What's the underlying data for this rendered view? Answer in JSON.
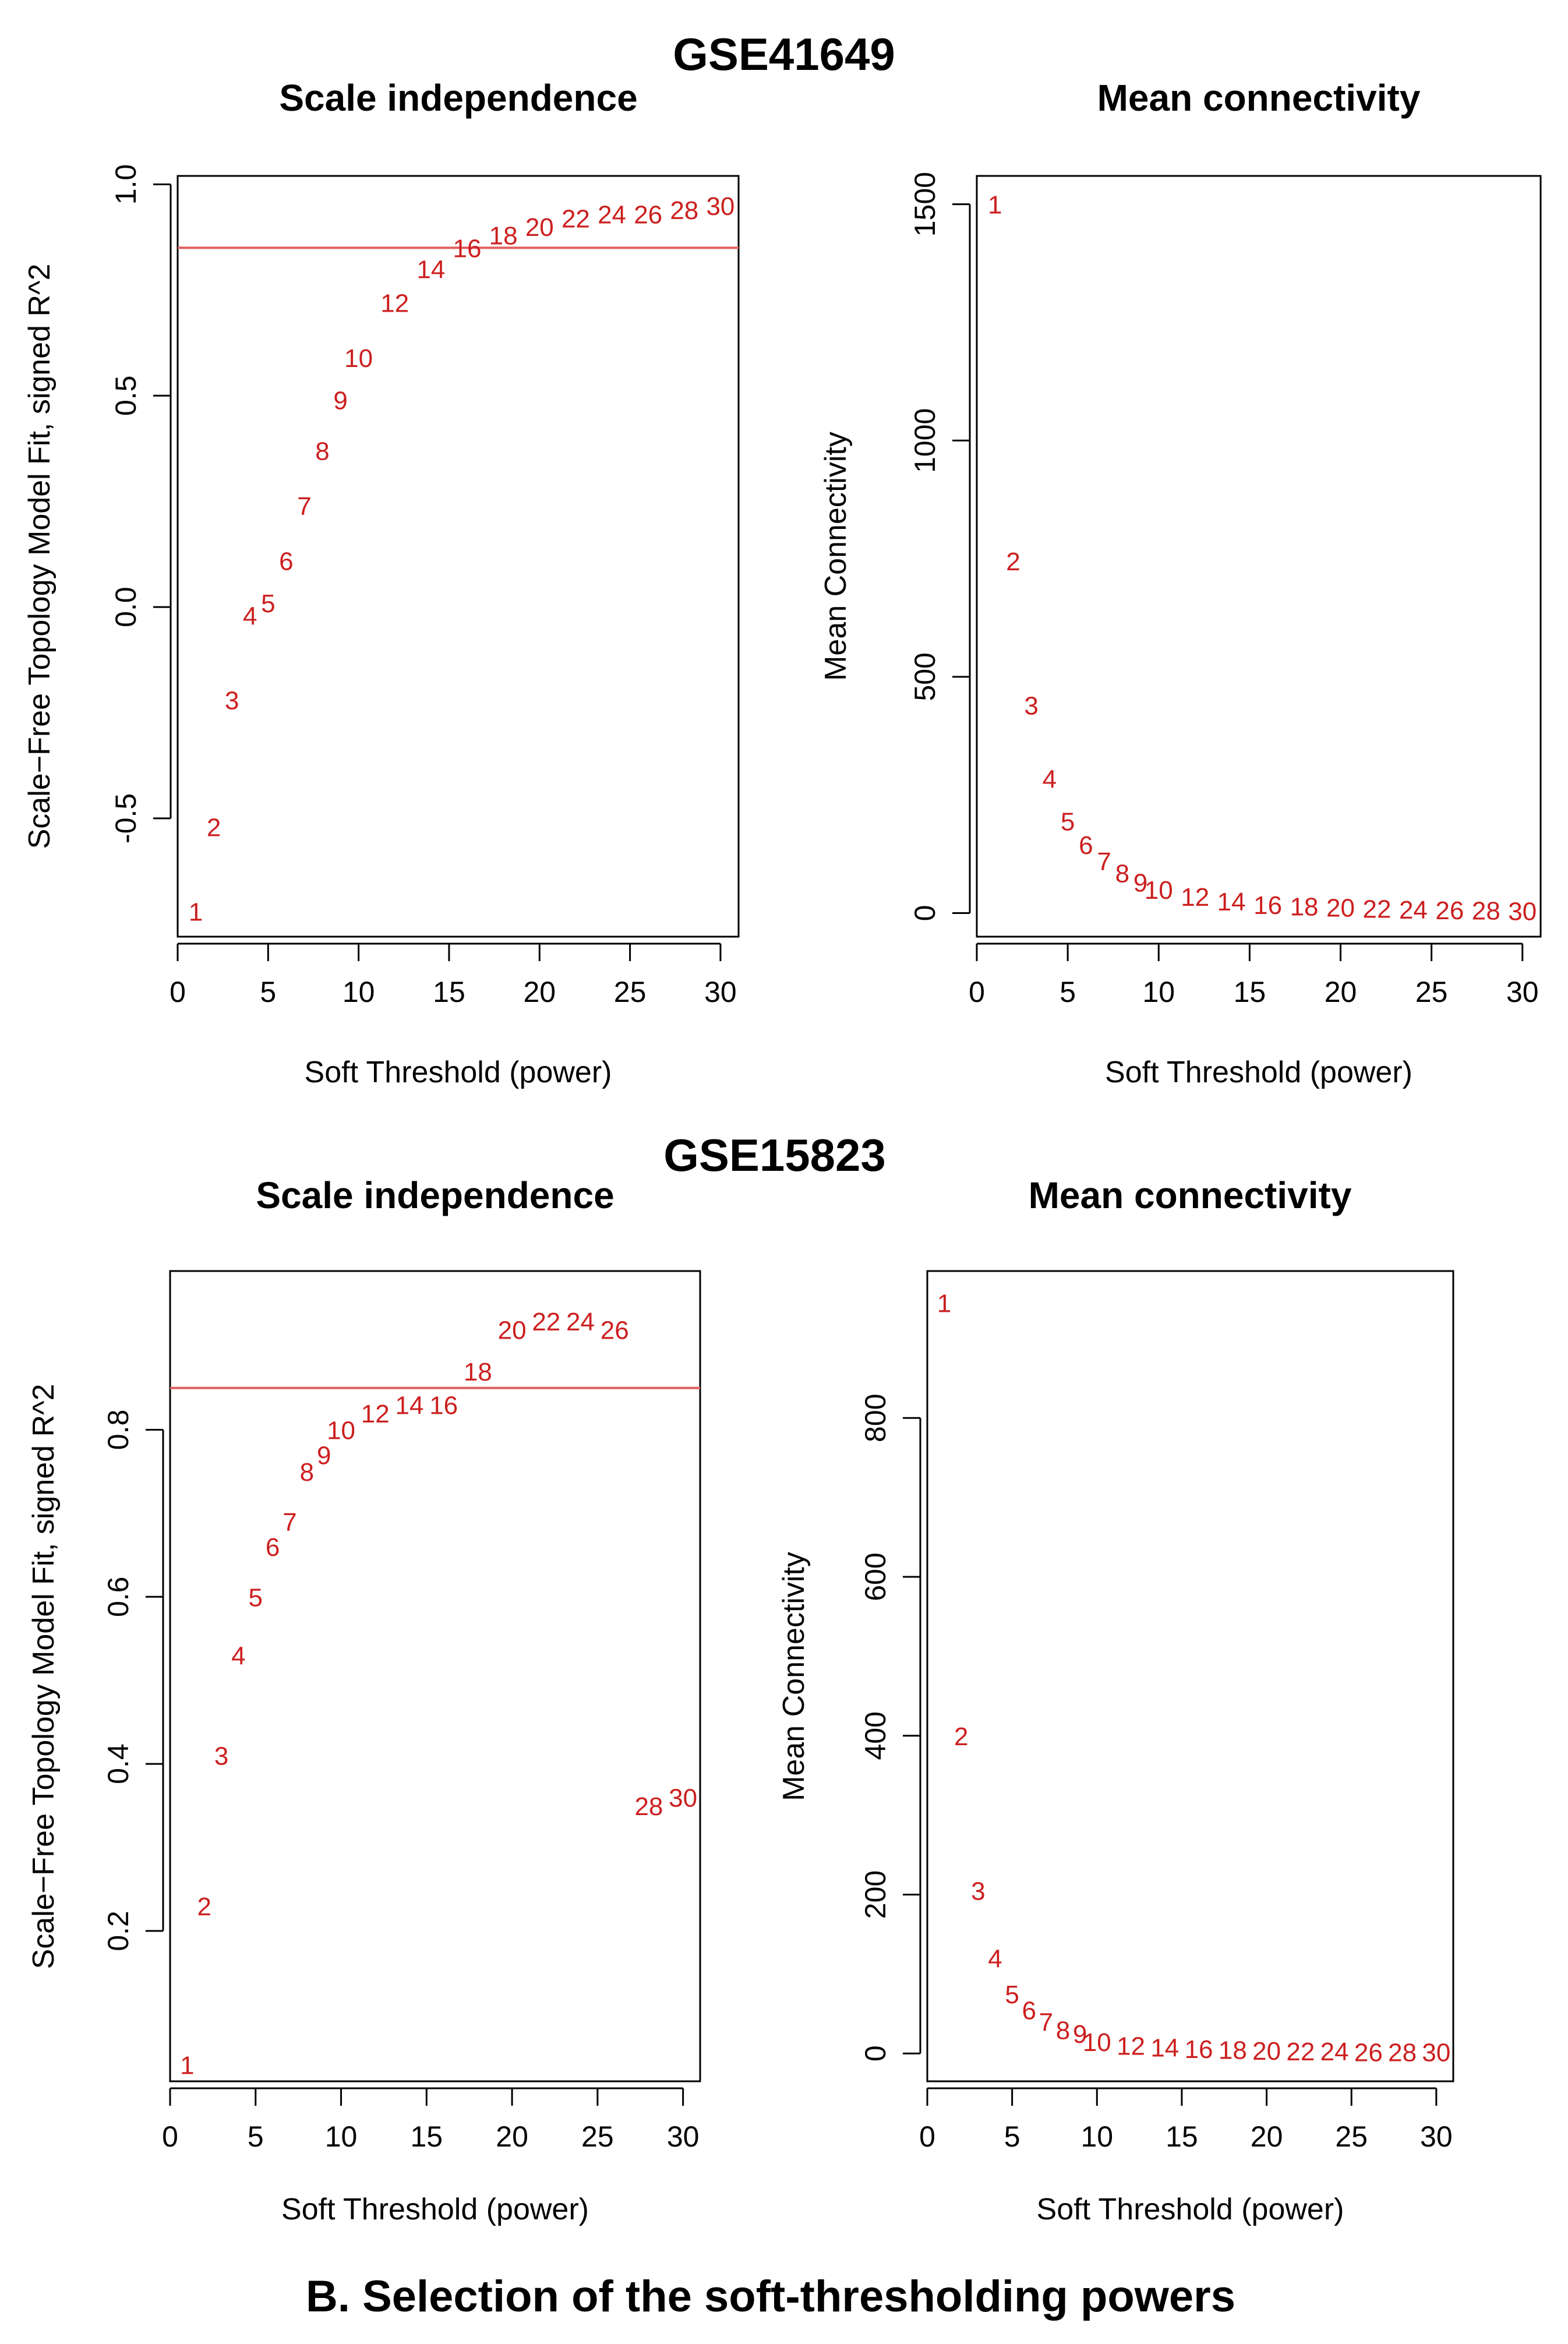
{
  "figure": {
    "caption": "B. Selection of the soft-thresholding powers",
    "groups": [
      {
        "title": "GSE41649"
      },
      {
        "title": "GSE15823"
      }
    ]
  },
  "colors": {
    "points": "#cc1f1f",
    "cutoff_line": "#e06060",
    "axis": "#000000"
  },
  "chart_data": [
    {
      "type": "scatter",
      "group": "GSE41649",
      "title": "Scale independence",
      "xlabel": "Soft Threshold (power)",
      "ylabel": "Scale−Free Topology Model Fit, signed R^2",
      "xlim": [
        0,
        31
      ],
      "ylim": [
        -0.78,
        1.02
      ],
      "xticks": [
        0,
        5,
        10,
        15,
        20,
        25,
        30
      ],
      "yticks": [
        -0.5,
        0.0,
        0.5,
        1.0
      ],
      "ytick_labels": [
        "-0.5",
        "0.0",
        "0.5",
        "1.0"
      ],
      "hline": 0.85,
      "labels": [
        "1",
        "2",
        "3",
        "4",
        "5",
        "6",
        "7",
        "8",
        "9",
        "10",
        "12",
        "14",
        "16",
        "18",
        "20",
        "22",
        "24",
        "26",
        "28",
        "30"
      ],
      "x": [
        1,
        2,
        3,
        4,
        5,
        6,
        7,
        8,
        9,
        10,
        12,
        14,
        16,
        18,
        20,
        22,
        24,
        26,
        28,
        30
      ],
      "y": [
        -0.72,
        -0.52,
        -0.22,
        -0.02,
        0.01,
        0.11,
        0.24,
        0.37,
        0.49,
        0.59,
        0.72,
        0.8,
        0.85,
        0.88,
        0.9,
        0.92,
        0.93,
        0.93,
        0.94,
        0.95
      ]
    },
    {
      "type": "scatter",
      "group": "GSE41649",
      "title": "Mean connectivity",
      "xlabel": "Soft Threshold (power)",
      "ylabel": "Mean Connectivity",
      "xlim": [
        0,
        31
      ],
      "ylim": [
        -50,
        1560
      ],
      "xticks": [
        0,
        5,
        10,
        15,
        20,
        25,
        30
      ],
      "yticks": [
        0,
        500,
        1000,
        1500
      ],
      "ytick_labels": [
        "0",
        "500",
        "1000",
        "1500"
      ],
      "labels": [
        "1",
        "2",
        "3",
        "4",
        "5",
        "6",
        "7",
        "8",
        "9",
        "10",
        "12",
        "14",
        "16",
        "18",
        "20",
        "22",
        "24",
        "26",
        "28",
        "30"
      ],
      "x": [
        1,
        2,
        3,
        4,
        5,
        6,
        7,
        8,
        9,
        10,
        12,
        14,
        16,
        18,
        20,
        22,
        24,
        26,
        28,
        30
      ],
      "y": [
        1500,
        745,
        440,
        285,
        195,
        145,
        110,
        85,
        65,
        50,
        35,
        25,
        18,
        15,
        12,
        10,
        8,
        7,
        6,
        5
      ]
    },
    {
      "type": "scatter",
      "group": "GSE15823",
      "title": "Scale independence",
      "xlabel": "Soft Threshold (power)",
      "ylabel": "Scale−Free Topology Model Fit, signed R^2",
      "xlim": [
        0,
        31
      ],
      "ylim": [
        0.02,
        0.99
      ],
      "xticks": [
        0,
        5,
        10,
        15,
        20,
        25,
        30
      ],
      "yticks": [
        0.2,
        0.4,
        0.6,
        0.8
      ],
      "ytick_labels": [
        "0.2",
        "0.4",
        "0.6",
        "0.8"
      ],
      "hline": 0.85,
      "labels": [
        "1",
        "2",
        "3",
        "4",
        "5",
        "6",
        "7",
        "8",
        "9",
        "10",
        "12",
        "14",
        "16",
        "18",
        "20",
        "22",
        "24",
        "26",
        "28",
        "30"
      ],
      "x": [
        1,
        2,
        3,
        4,
        5,
        6,
        7,
        8,
        9,
        10,
        12,
        14,
        16,
        18,
        20,
        22,
        24,
        26,
        28,
        30
      ],
      "y": [
        0.04,
        0.23,
        0.41,
        0.53,
        0.6,
        0.66,
        0.69,
        0.75,
        0.77,
        0.8,
        0.82,
        0.83,
        0.83,
        0.87,
        0.92,
        0.93,
        0.93,
        0.92,
        0.35,
        0.36
      ]
    },
    {
      "type": "scatter",
      "group": "GSE15823",
      "title": "Mean connectivity",
      "xlabel": "Soft Threshold (power)",
      "ylabel": "Mean Connectivity",
      "xlim": [
        0,
        31
      ],
      "ylim": [
        -35,
        985
      ],
      "xticks": [
        0,
        5,
        10,
        15,
        20,
        25,
        30
      ],
      "yticks": [
        0,
        200,
        400,
        600,
        800
      ],
      "ytick_labels": [
        "0",
        "200",
        "400",
        "600",
        "800"
      ],
      "labels": [
        "1",
        "2",
        "3",
        "4",
        "5",
        "6",
        "7",
        "8",
        "9",
        "10",
        "12",
        "14",
        "16",
        "18",
        "20",
        "22",
        "24",
        "26",
        "28",
        "30"
      ],
      "x": [
        1,
        2,
        3,
        4,
        5,
        6,
        7,
        8,
        9,
        10,
        12,
        14,
        16,
        18,
        20,
        22,
        24,
        26,
        28,
        30
      ],
      "y": [
        945,
        400,
        205,
        120,
        75,
        55,
        40,
        30,
        25,
        15,
        10,
        8,
        6,
        5,
        4,
        3,
        3,
        2,
        2,
        2
      ]
    }
  ]
}
